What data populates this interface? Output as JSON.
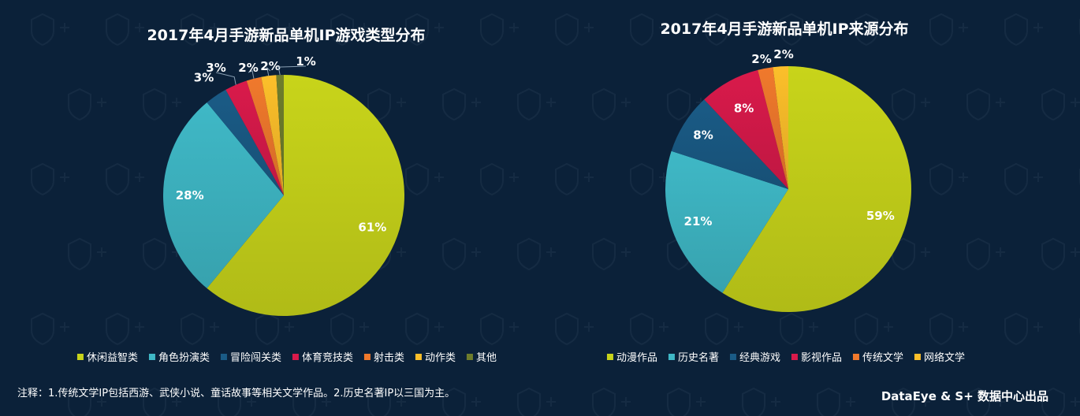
{
  "chart_data": [
    {
      "type": "pie",
      "title": "2017年4月手游新品单机IP游戏类型分布",
      "legend_position": "bottom",
      "slices": [
        {
          "name": "休闲益智类",
          "value": 61,
          "label": "61%",
          "color": "#c8d41a"
        },
        {
          "name": "角色扮演类",
          "value": 28,
          "label": "28%",
          "color": "#3fb8c6"
        },
        {
          "name": "冒险闯关类",
          "value": 3,
          "label": "3%",
          "color": "#1a5b86"
        },
        {
          "name": "体育竞技类",
          "value": 3,
          "label": "3%",
          "color": "#d91a4b"
        },
        {
          "name": "射击类",
          "value": 2,
          "label": "2%",
          "color": "#f0792c"
        },
        {
          "name": "动作类",
          "value": 2,
          "label": "2%",
          "color": "#fcbf2a"
        },
        {
          "name": "其他",
          "value": 1,
          "label": "1%",
          "color": "#6e7d2c"
        }
      ]
    },
    {
      "type": "pie",
      "title": "2017年4月手游新品单机IP来源分布",
      "legend_position": "bottom",
      "slices": [
        {
          "name": "动漫作品",
          "value": 59,
          "label": "59%",
          "color": "#c8d41a"
        },
        {
          "name": "历史名著",
          "value": 21,
          "label": "21%",
          "color": "#3fb8c6"
        },
        {
          "name": "经典游戏",
          "value": 8,
          "label": "8%",
          "color": "#1a5b86"
        },
        {
          "name": "影视作品",
          "value": 8,
          "label": "8%",
          "color": "#d91a4b"
        },
        {
          "name": "传统文学",
          "value": 2,
          "label": "2%",
          "color": "#f0792c"
        },
        {
          "name": "网络文学",
          "value": 2,
          "label": "2%",
          "color": "#fcbf2a"
        }
      ]
    }
  ],
  "footer": {
    "note": "注释：1.传统文学IP包括西游、武侠小说、童话故事等相关文学作品。2.历史名著IP以三国为主。",
    "credit": "DataEye & S+ 数据中心出品"
  },
  "colors": {
    "background": "#0b2139",
    "text": "#ffffff"
  }
}
